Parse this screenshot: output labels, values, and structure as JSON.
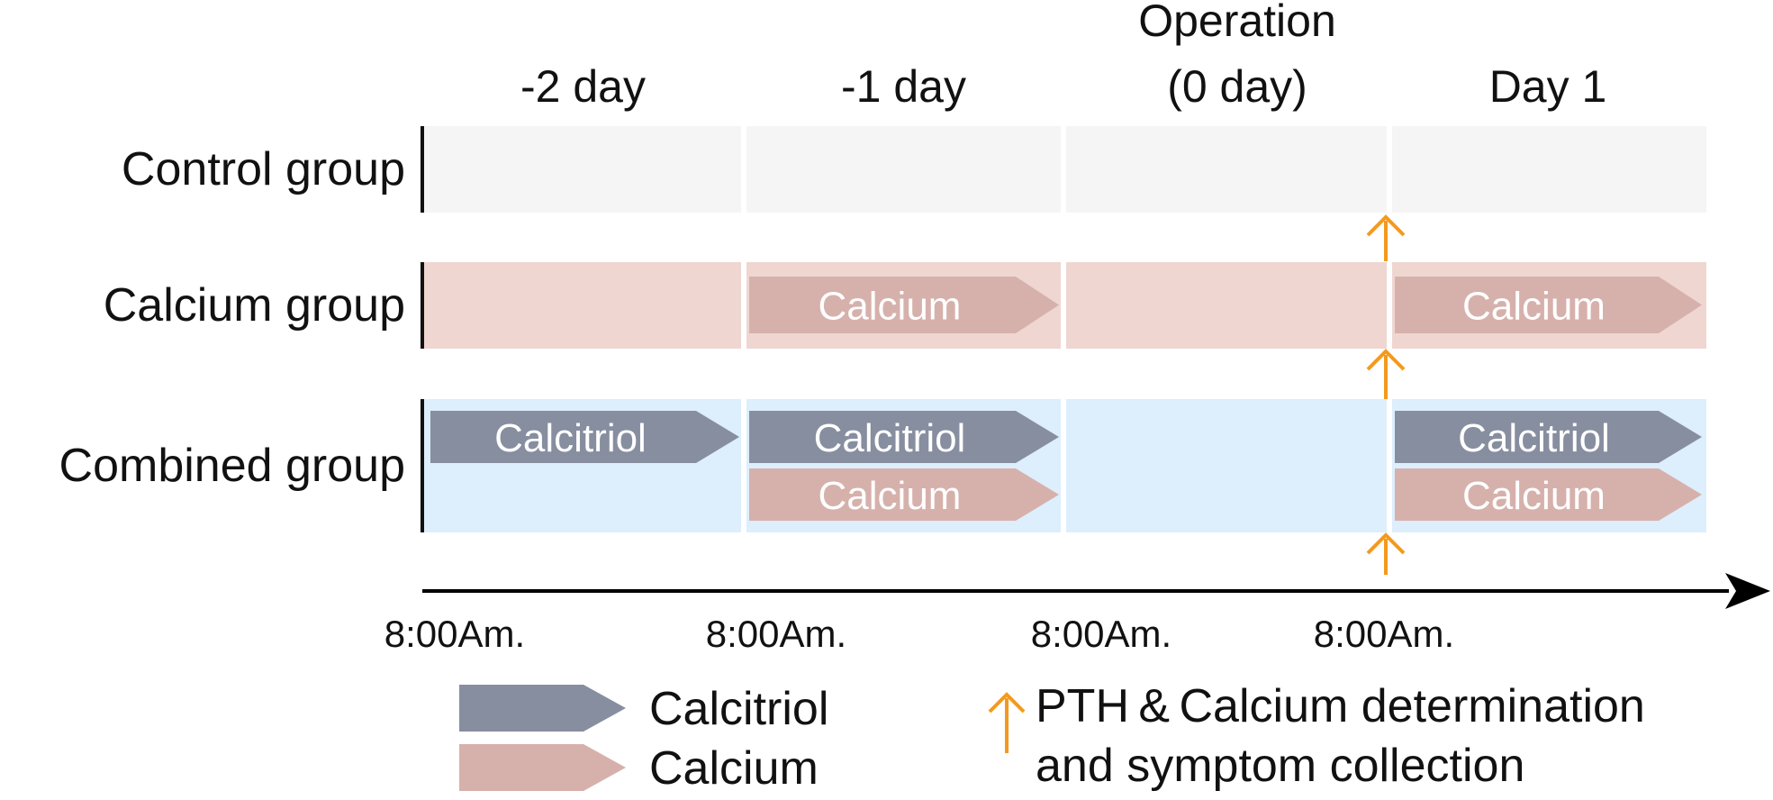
{
  "columns": [
    {
      "id": "d-2",
      "lines": [
        "-2 day"
      ]
    },
    {
      "id": "d-1",
      "lines": [
        "-1 day"
      ]
    },
    {
      "id": "d0",
      "lines": [
        "Operation",
        "(0 day)"
      ]
    },
    {
      "id": "d1",
      "lines": [
        "Day 1"
      ]
    }
  ],
  "rows": [
    {
      "id": "control",
      "label": "Control group",
      "color": "#f5f5f5",
      "arrows": []
    },
    {
      "id": "calcium",
      "label": "Calcium group",
      "color": "#efd6d1",
      "arrows": [
        {
          "column": 1,
          "lane": 0,
          "text": "Calcium",
          "kind": "calcium"
        },
        {
          "column": 3,
          "lane": 0,
          "text": "Calcium",
          "kind": "calcium"
        }
      ]
    },
    {
      "id": "combined",
      "label": "Combined group",
      "color": "#ddeefc",
      "arrows": [
        {
          "column": 0,
          "lane": 0,
          "text": "Calcitriol",
          "kind": "calcitriol"
        },
        {
          "column": 1,
          "lane": 0,
          "text": "Calcitriol",
          "kind": "calcitriol"
        },
        {
          "column": 1,
          "lane": 1,
          "text": "Calcium",
          "kind": "calcium"
        },
        {
          "column": 3,
          "lane": 0,
          "text": "Calcitriol",
          "kind": "calcitriol"
        },
        {
          "column": 3,
          "lane": 1,
          "text": "Calcium",
          "kind": "calcium"
        }
      ]
    }
  ],
  "timeline": {
    "ticks": [
      "8:00Am.",
      "8:00Am.",
      "8:00Am.",
      "8:00Am."
    ]
  },
  "measurement_markers": [
    {
      "after_row": 0
    },
    {
      "after_row": 1
    },
    {
      "after_row": 2
    }
  ],
  "legend": {
    "items": [
      {
        "kind": "calcitriol",
        "label": "Calcitriol"
      },
      {
        "kind": "calcium",
        "label": "Calcium"
      }
    ],
    "marker_lines": [
      "PTH & Calcium determination",
      "and symptom collection"
    ]
  },
  "colors": {
    "calcitriol": "#878ea0",
    "calcium": "#d6b1ac",
    "marker": "#f39a1e",
    "axis": "#000000"
  }
}
